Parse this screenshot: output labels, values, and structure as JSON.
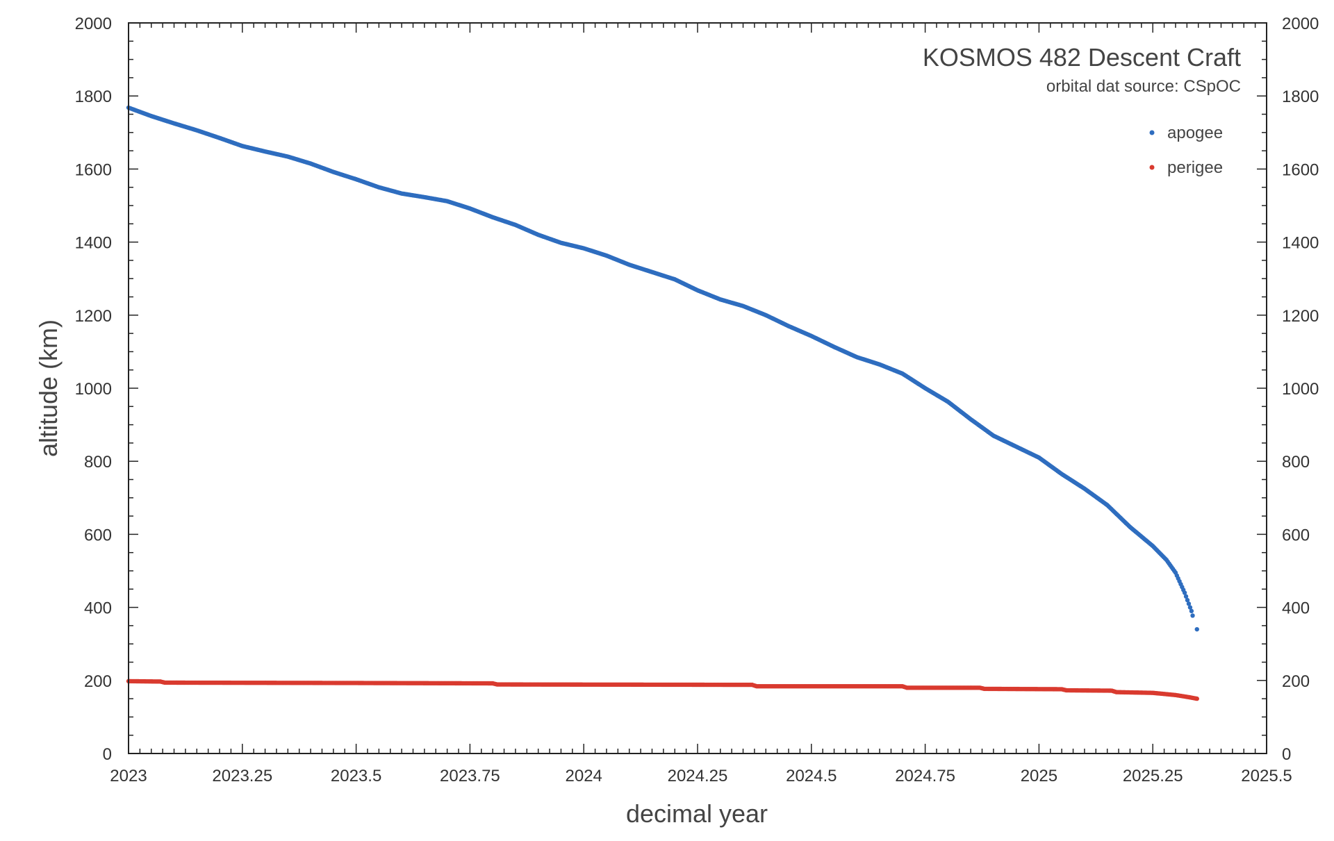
{
  "chart_data": {
    "type": "scatter",
    "title": "KOSMOS 482 Descent Craft",
    "subtitle": "orbital dat source:  CSpOC",
    "xlabel": "decimal year",
    "ylabel": "altitude (km)",
    "xlim": [
      2023,
      2025.5
    ],
    "ylim": [
      0,
      2000
    ],
    "x_ticks": [
      "2023",
      "2023.25",
      "2023.5",
      "2023.75",
      "2024",
      "2024.25",
      "2024.5",
      "2024.75",
      "2025",
      "2025.25",
      "2025.5"
    ],
    "y_ticks": [
      "0",
      "200",
      "400",
      "600",
      "800",
      "1000",
      "1200",
      "1400",
      "1600",
      "1800",
      "2000"
    ],
    "y_ticks_right": [
      "0",
      "200",
      "400",
      "600",
      "800",
      "1000",
      "1200",
      "1400",
      "1600",
      "1800",
      "2000"
    ],
    "legend_position": "top-right",
    "grid": false,
    "series": [
      {
        "name": "apogee",
        "color": "#2e6dbf",
        "points": [
          [
            2023.0,
            1768
          ],
          [
            2023.05,
            1745
          ],
          [
            2023.1,
            1725
          ],
          [
            2023.15,
            1706
          ],
          [
            2023.2,
            1685
          ],
          [
            2023.25,
            1663
          ],
          [
            2023.3,
            1648
          ],
          [
            2023.35,
            1634
          ],
          [
            2023.4,
            1615
          ],
          [
            2023.45,
            1592
          ],
          [
            2023.5,
            1572
          ],
          [
            2023.55,
            1550
          ],
          [
            2023.6,
            1533
          ],
          [
            2023.65,
            1523
          ],
          [
            2023.7,
            1512
          ],
          [
            2023.75,
            1492
          ],
          [
            2023.8,
            1468
          ],
          [
            2023.85,
            1447
          ],
          [
            2023.9,
            1420
          ],
          [
            2023.95,
            1398
          ],
          [
            2024.0,
            1383
          ],
          [
            2024.05,
            1363
          ],
          [
            2024.1,
            1338
          ],
          [
            2024.15,
            1318
          ],
          [
            2024.2,
            1298
          ],
          [
            2024.25,
            1268
          ],
          [
            2024.3,
            1243
          ],
          [
            2024.35,
            1225
          ],
          [
            2024.4,
            1200
          ],
          [
            2024.45,
            1170
          ],
          [
            2024.5,
            1143
          ],
          [
            2024.55,
            1113
          ],
          [
            2024.6,
            1085
          ],
          [
            2024.65,
            1065
          ],
          [
            2024.7,
            1040
          ],
          [
            2024.75,
            1000
          ],
          [
            2024.8,
            963
          ],
          [
            2024.85,
            915
          ],
          [
            2024.9,
            870
          ],
          [
            2024.95,
            840
          ],
          [
            2025.0,
            810
          ],
          [
            2025.05,
            765
          ],
          [
            2025.1,
            725
          ],
          [
            2025.15,
            680
          ],
          [
            2025.2,
            620
          ],
          [
            2025.25,
            568
          ],
          [
            2025.28,
            530
          ],
          [
            2025.3,
            495
          ],
          [
            2025.32,
            440
          ],
          [
            2025.335,
            390
          ],
          [
            2025.34,
            365
          ],
          [
            2025.347,
            340
          ]
        ]
      },
      {
        "name": "perigee",
        "color": "#d93a2f",
        "points": [
          [
            2023.0,
            198
          ],
          [
            2023.07,
            197
          ],
          [
            2023.08,
            194
          ],
          [
            2023.5,
            193
          ],
          [
            2023.8,
            192
          ],
          [
            2023.81,
            189
          ],
          [
            2024.37,
            188
          ],
          [
            2024.38,
            184
          ],
          [
            2024.7,
            184
          ],
          [
            2024.71,
            180
          ],
          [
            2024.87,
            180
          ],
          [
            2024.88,
            177
          ],
          [
            2025.05,
            176
          ],
          [
            2025.06,
            173
          ],
          [
            2025.16,
            172
          ],
          [
            2025.17,
            168
          ],
          [
            2025.25,
            166
          ],
          [
            2025.3,
            160
          ],
          [
            2025.33,
            154
          ],
          [
            2025.347,
            150
          ]
        ]
      }
    ]
  }
}
